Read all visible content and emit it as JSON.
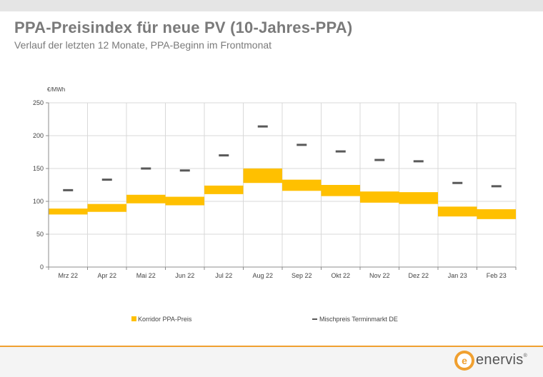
{
  "title": "PPA-Preisindex für neue PV (10-Jahres-PPA)",
  "subtitle": "Verlauf der letzten 12 Monate, PPA-Beginn im Frontmonat",
  "brand": {
    "name": "enervis",
    "mark": "®",
    "accent": "#f0a030"
  },
  "chart_data": {
    "type": "bar",
    "unit_label": "€/MWh",
    "ylim": [
      0,
      250
    ],
    "yticks": [
      "0",
      "50",
      "100",
      "150",
      "200",
      "250"
    ],
    "grid": true,
    "legend_position": "bottom",
    "categories": [
      "Mrz 22",
      "Apr 22",
      "Mai 22",
      "Jun 22",
      "Jul 22",
      "Aug 22",
      "Sep 22",
      "Okt 22",
      "Nov 22",
      "Dez 22",
      "Jan 23",
      "Feb 23"
    ],
    "series": [
      {
        "name": "Korridor PPA-Preis",
        "kind": "range",
        "color": "#ffc000",
        "low": [
          80,
          84,
          97,
          94,
          111,
          128,
          116,
          108,
          98,
          96,
          77,
          73
        ],
        "high": [
          89,
          96,
          110,
          107,
          124,
          150,
          133,
          125,
          115,
          114,
          92,
          88
        ]
      },
      {
        "name": "Mischpreis Terminmarkt DE",
        "kind": "marker",
        "color": "#595959",
        "values": [
          117,
          133,
          150,
          147,
          170,
          214,
          186,
          176,
          163,
          161,
          128,
          123
        ]
      }
    ]
  }
}
